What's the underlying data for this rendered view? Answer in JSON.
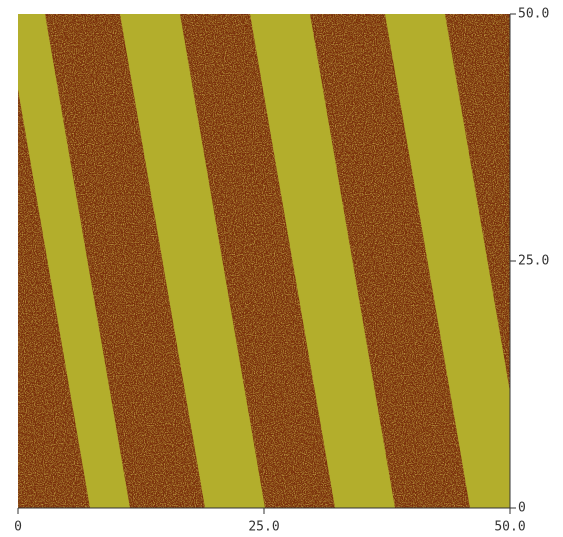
{
  "chart_data": {
    "type": "image",
    "xlim": [
      0,
      50
    ],
    "xticks": [
      0,
      {
        "value": 25,
        "label": "25.0"
      },
      {
        "value": 50,
        "label": "50.0"
      }
    ],
    "ylim": [
      0,
      50
    ],
    "yticks": [
      0,
      {
        "value": 25,
        "label": "25.0"
      },
      {
        "value": 50,
        "label": "50.0"
      }
    ]
  }
}
